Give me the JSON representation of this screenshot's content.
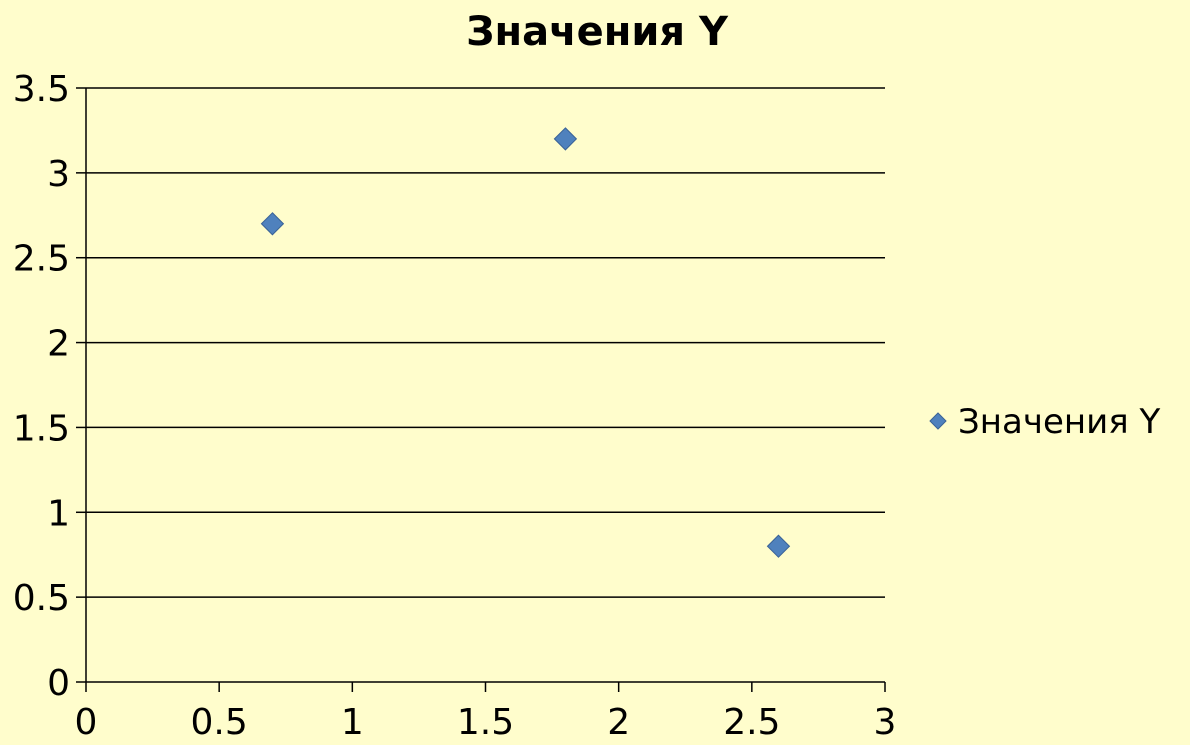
{
  "chart_data": {
    "type": "scatter",
    "title": "Значения Y",
    "xlabel": "",
    "ylabel": "",
    "xlim": [
      0,
      3
    ],
    "ylim": [
      0,
      3.5
    ],
    "x_ticks": [
      "0",
      "0.5",
      "1",
      "1.5",
      "2",
      "2.5",
      "3"
    ],
    "y_ticks": [
      "0",
      "0.5",
      "1",
      "1.5",
      "2",
      "2.5",
      "3",
      "3.5"
    ],
    "grid": "horizontal",
    "legend_position": "right",
    "series": [
      {
        "name": "Значения Y",
        "marker": "diamond",
        "color": "#4F81BD",
        "points": [
          {
            "x": 0.7,
            "y": 2.7
          },
          {
            "x": 1.8,
            "y": 3.2
          },
          {
            "x": 2.6,
            "y": 0.8
          }
        ]
      }
    ]
  },
  "colors": {
    "background": "#FFFDCC",
    "axis": "#000000",
    "grid": "#000000"
  }
}
